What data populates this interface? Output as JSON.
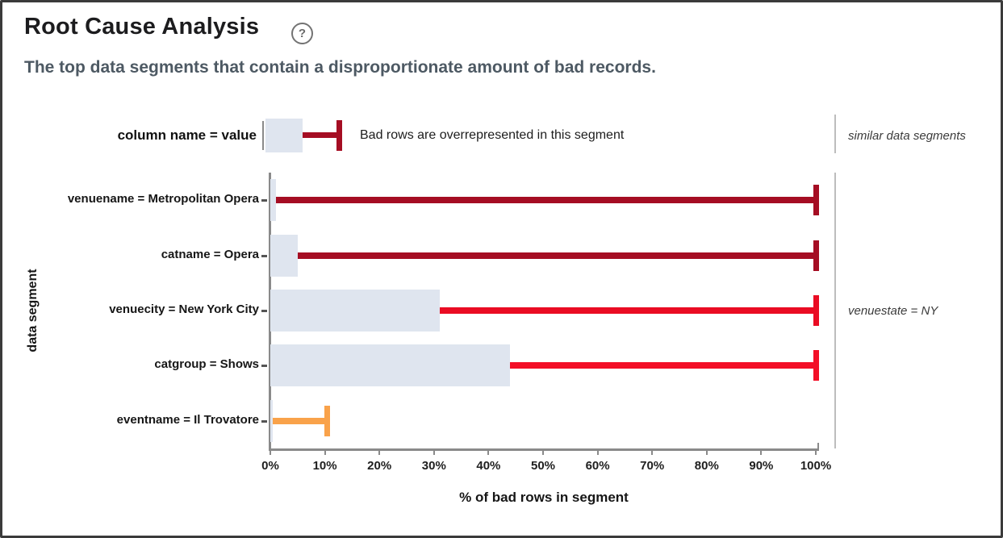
{
  "header": {
    "title": "Root Cause Analysis",
    "help_label": "?",
    "subtitle": "The top data segments that contain a disproportionate amount of bad records."
  },
  "legend": {
    "sample_label": "column name = value",
    "description": "Bad rows are overrepresented in this segment"
  },
  "similar_panel": {
    "heading": "similar data segments",
    "annotation": "venuestate = NY"
  },
  "chart_data": {
    "type": "bar",
    "orientation": "horizontal",
    "title": "Root Cause Analysis",
    "xlabel": "% of bad rows in segment",
    "ylabel": "data segment",
    "xlim": [
      0,
      100
    ],
    "x_tick_labels": [
      "0%",
      "10%",
      "20%",
      "30%",
      "40%",
      "50%",
      "60%",
      "70%",
      "80%",
      "90%",
      "100%"
    ],
    "grid": false,
    "legend_position": "top",
    "categories": [
      "venuename = Metropolitan Opera",
      "catname = Opera",
      "venuecity = New York City",
      "catgroup = Shows",
      "eventname = Il Trovatore"
    ],
    "series": [
      {
        "name": "segment size (light bar, % of rows)",
        "values": [
          1,
          5,
          31,
          44,
          0.5
        ]
      },
      {
        "name": "% of bad rows in segment (whisker end)",
        "values": [
          100,
          100,
          100,
          100,
          10.5
        ]
      }
    ],
    "colors": {
      "bar": "#dfe5ef",
      "whiskers": [
        "#a50d23",
        "#a50d23",
        "#ea0c23",
        "#f30f27",
        "#f9a24a"
      ],
      "axis": "#8a8a8a",
      "similar_divider": "#bdbdbd"
    }
  }
}
